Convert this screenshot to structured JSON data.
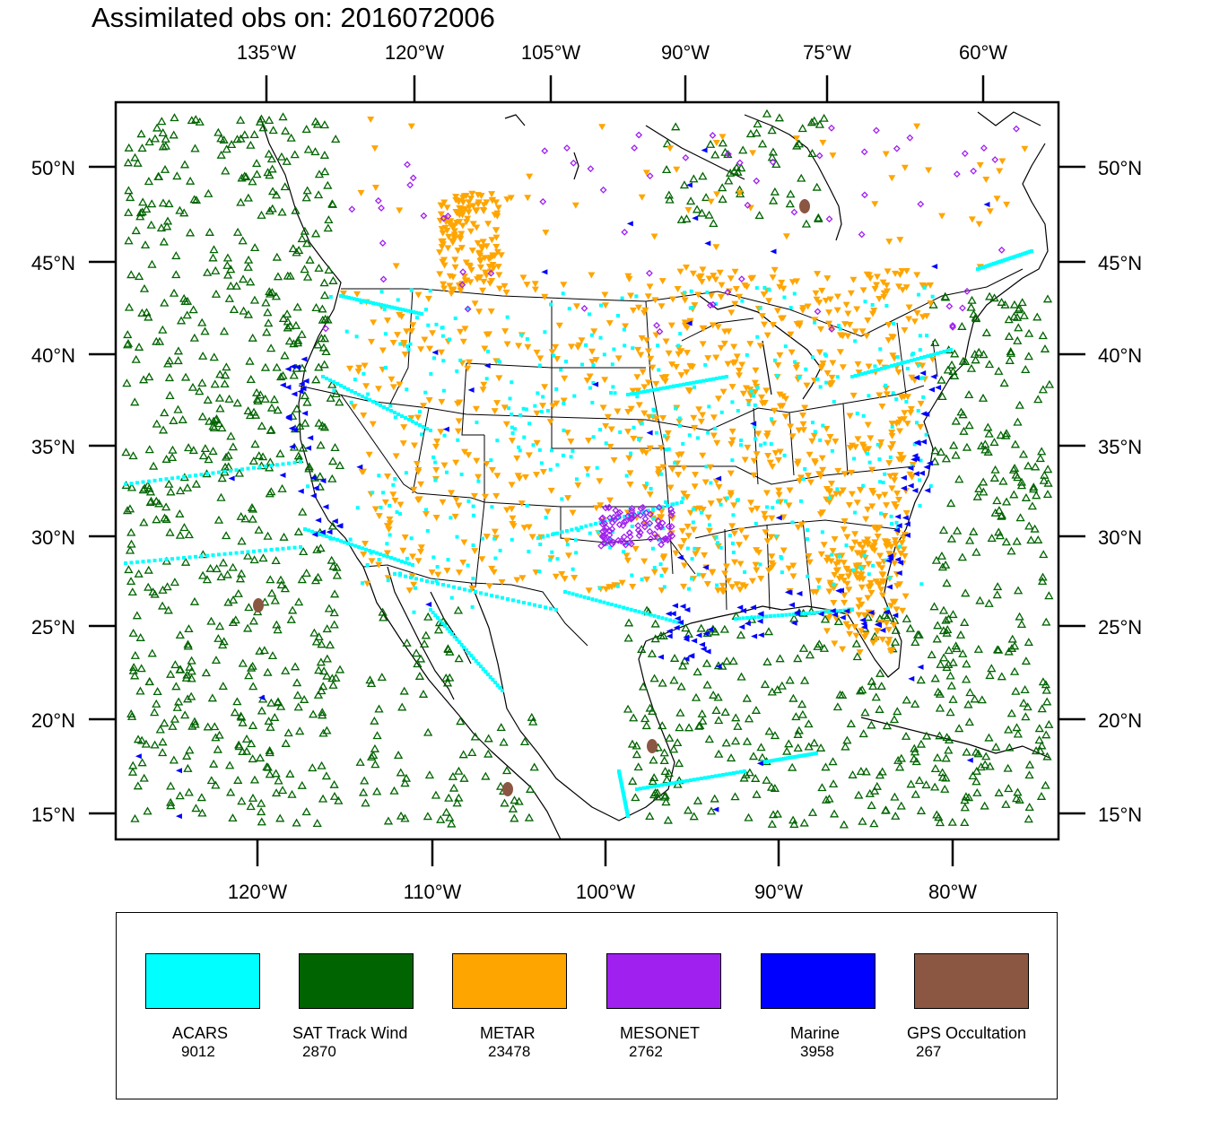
{
  "title": "Assimilated obs on: 2016072006",
  "map": {
    "top_lon_labels": [
      "135°W",
      "120°W",
      "105°W",
      "90°W",
      "75°W",
      "60°W"
    ],
    "bottom_lon_labels": [
      "120°W",
      "110°W",
      "100°W",
      "90°W",
      "80°W"
    ],
    "lat_labels": [
      "50°N",
      "45°N",
      "40°N",
      "35°N",
      "30°N",
      "25°N",
      "20°N",
      "15°N"
    ],
    "extent": {
      "lon_min": -128.2,
      "lon_max": -74.1,
      "lat_min": 13.7,
      "lat_max": 54.0
    }
  },
  "legend": [
    {
      "name": "ACARS",
      "count": "9012",
      "color": "#00ffff",
      "marker": "square"
    },
    {
      "name": "SAT Track Wind",
      "count": "2870",
      "color": "#006400",
      "marker": "open-triangle-up"
    },
    {
      "name": "METAR",
      "count": "23478",
      "color": "#ffa500",
      "marker": "triangle-down"
    },
    {
      "name": "MESONET",
      "count": "2762",
      "color": "#a020f0",
      "marker": "diamond"
    },
    {
      "name": "Marine",
      "count": "3958",
      "color": "#0000ff",
      "marker": "triangle-left"
    },
    {
      "name": "GPS Occultation",
      "count": "267",
      "color": "#8b5742",
      "marker": "ellipse"
    }
  ]
}
